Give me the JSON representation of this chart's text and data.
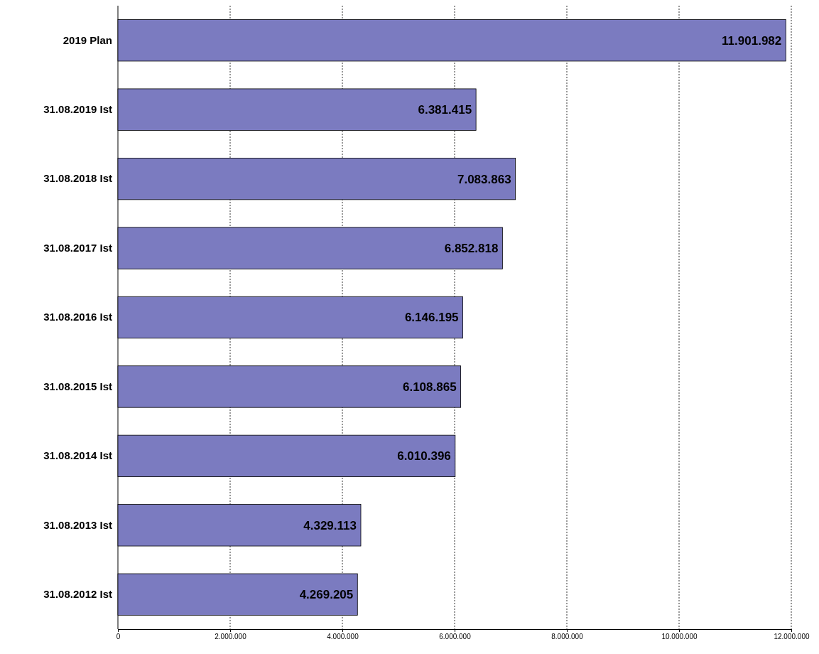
{
  "chart_data": {
    "type": "bar",
    "orientation": "horizontal",
    "categories": [
      "2019 Plan",
      "31.08.2019 Ist",
      "31.08.2018 Ist",
      "31.08.2017 Ist",
      "31.08.2016 Ist",
      "31.08.2015 Ist",
      "31.08.2014 Ist",
      "31.08.2013 Ist",
      "31.08.2012 Ist"
    ],
    "values": [
      11901982,
      6381415,
      7083863,
      6852818,
      6146195,
      6108865,
      6010396,
      4329113,
      4269205
    ],
    "value_labels": [
      "11.901.982",
      "6.381.415",
      "7.083.863",
      "6.852.818",
      "6.146.195",
      "6.108.865",
      "6.010.396",
      "4.329.113",
      "4.269.205"
    ],
    "color": "#7b7bc0",
    "xlim": [
      0,
      12000000
    ],
    "xticks": [
      {
        "value": 0,
        "label": "0"
      },
      {
        "value": 2000000,
        "label": "2.000.000"
      },
      {
        "value": 4000000,
        "label": "4.000.000"
      },
      {
        "value": 6000000,
        "label": "6.000.000"
      },
      {
        "value": 8000000,
        "label": "8.000.000"
      },
      {
        "value": 10000000,
        "label": "10.000.000"
      },
      {
        "value": 12000000,
        "label": "12.000.000"
      }
    ],
    "grid": "x"
  }
}
